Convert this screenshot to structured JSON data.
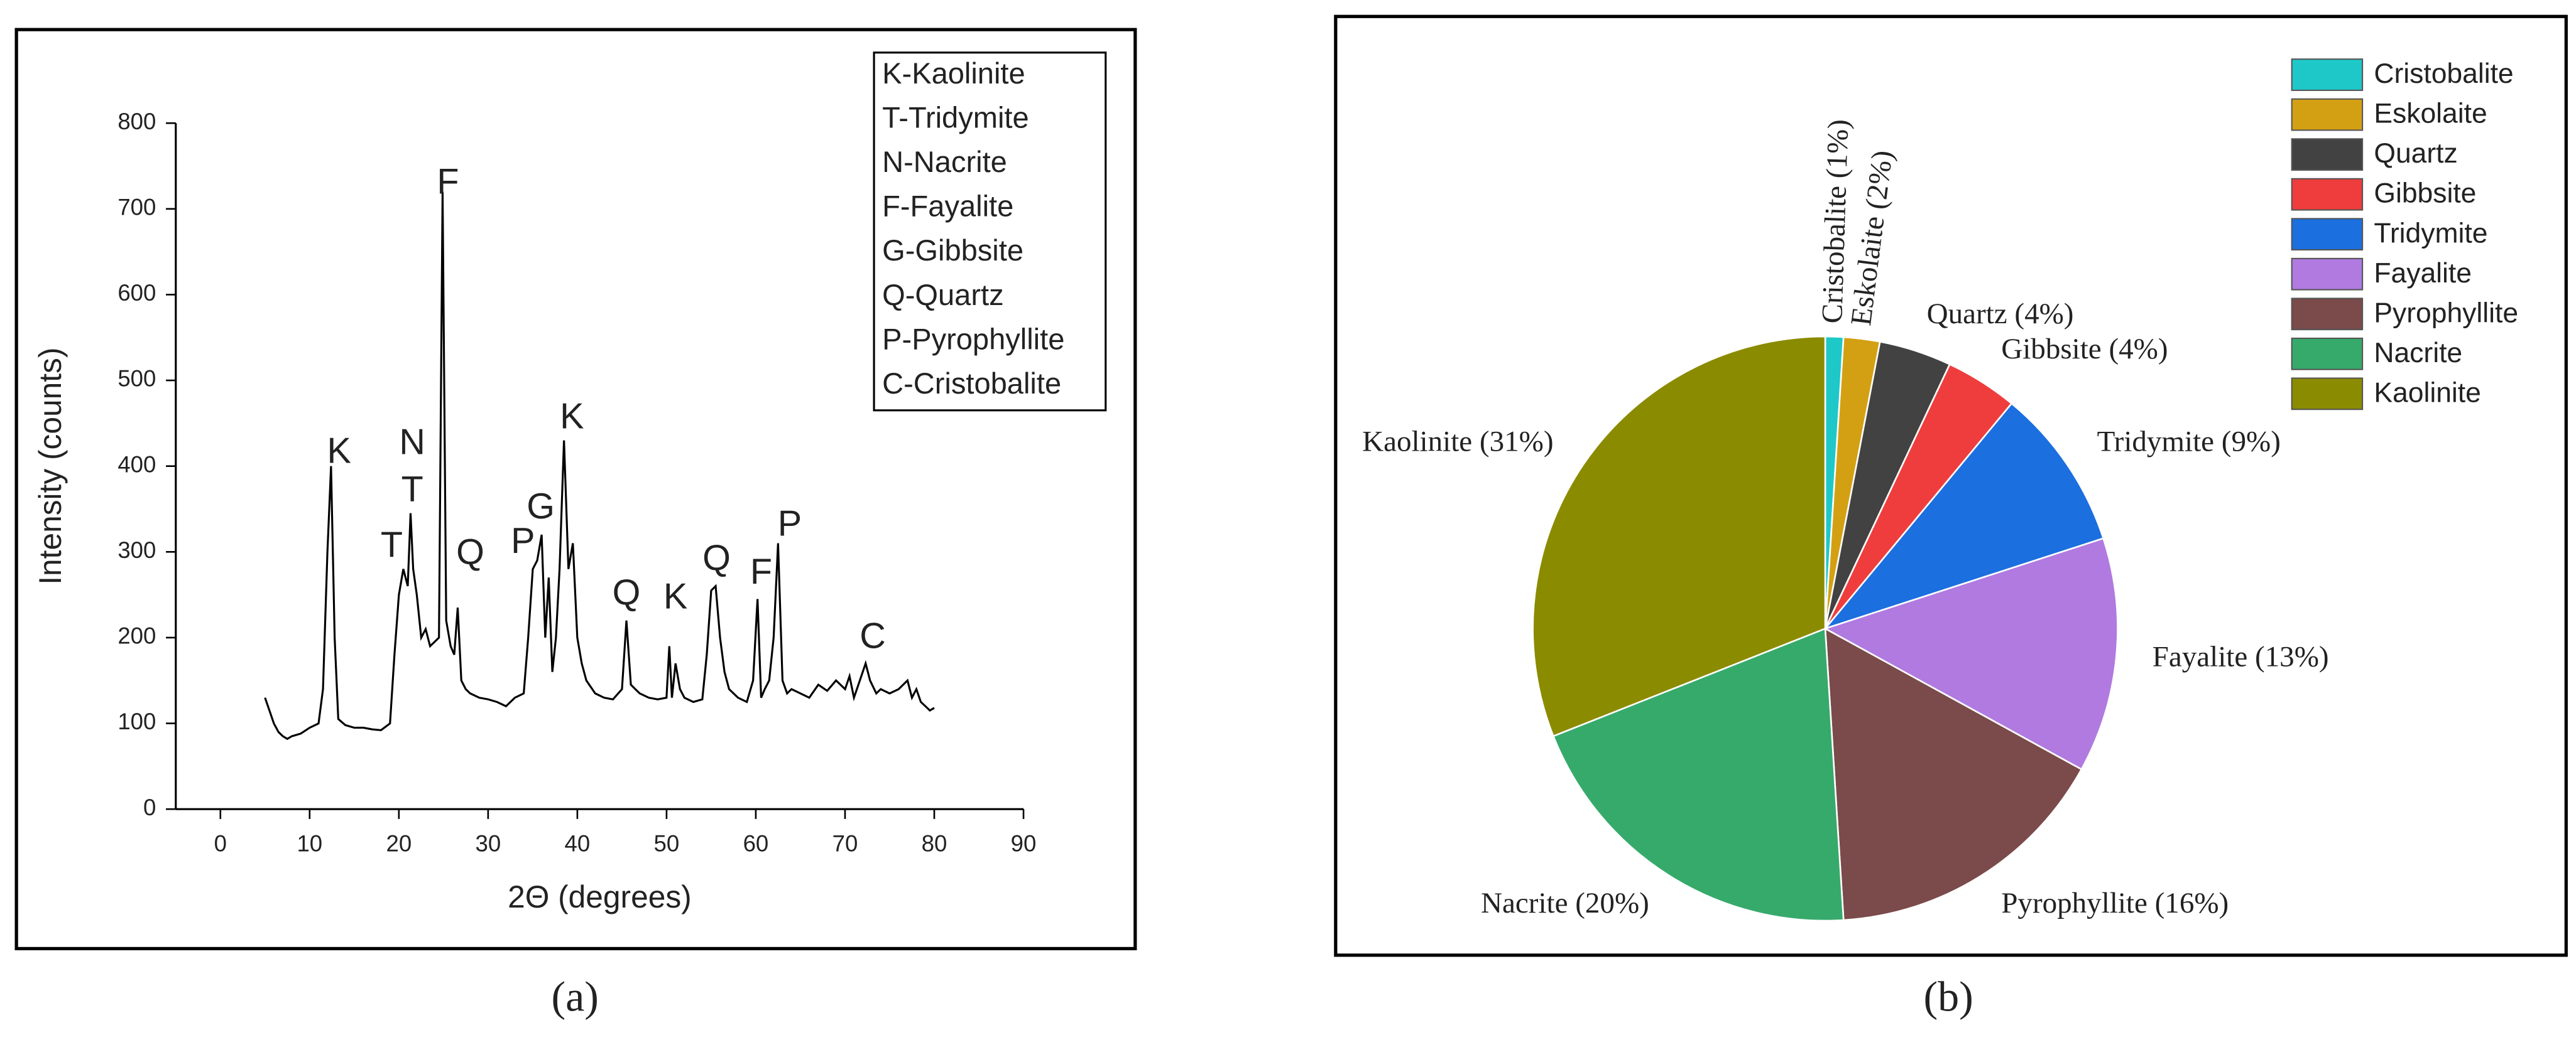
{
  "chart_data": [
    {
      "type": "line",
      "caption": "(a)",
      "x_label": "2Θ (degrees)",
      "y_label": "Intensity (counts)",
      "xlim": [
        -5,
        90
      ],
      "xticks": [
        0,
        10,
        20,
        30,
        40,
        50,
        60,
        70,
        80,
        90
      ],
      "ylim": [
        0,
        800
      ],
      "yticks": [
        0,
        100,
        200,
        300,
        400,
        500,
        600,
        700,
        800
      ],
      "color": "#000000",
      "x": [
        5,
        5.5,
        6,
        6.5,
        7,
        7.5,
        8,
        9,
        10,
        11,
        11.5,
        12,
        12.4,
        12.8,
        13.2,
        14,
        15,
        16,
        17,
        18,
        19,
        19.5,
        20,
        20.5,
        21,
        21.3,
        21.6,
        22,
        22.5,
        23,
        23.5,
        24,
        24.5,
        24.9,
        25.3,
        25.8,
        26.2,
        26.6,
        27,
        27.5,
        28,
        29,
        30,
        31,
        32,
        33,
        34,
        34.5,
        35,
        35.5,
        36,
        36.4,
        36.8,
        37.2,
        37.6,
        38,
        38.5,
        39,
        39.5,
        40,
        40.5,
        41,
        42,
        43,
        44,
        45,
        45.5,
        46,
        46.5,
        47,
        48,
        49,
        50,
        50.3,
        50.6,
        51,
        51.5,
        52,
        53,
        54,
        54.5,
        55,
        55.5,
        56,
        56.5,
        57,
        58,
        59,
        59.7,
        60.2,
        60.6,
        61,
        61.5,
        62,
        62.5,
        63,
        63.5,
        64,
        65,
        66,
        67,
        68,
        69,
        70,
        70.5,
        71,
        71.5,
        72.3,
        72.8,
        73.5,
        74,
        75,
        76,
        77,
        77.5,
        78,
        78.5,
        79,
        79.5,
        80
      ],
      "values": [
        130,
        115,
        100,
        90,
        85,
        82,
        85,
        88,
        95,
        100,
        140,
        300,
        400,
        200,
        105,
        98,
        95,
        95,
        93,
        92,
        100,
        180,
        250,
        280,
        260,
        345,
        280,
        250,
        200,
        210,
        190,
        195,
        200,
        720,
        220,
        190,
        180,
        235,
        150,
        140,
        135,
        130,
        128,
        125,
        120,
        130,
        135,
        200,
        280,
        290,
        320,
        200,
        270,
        160,
        200,
        280,
        430,
        280,
        310,
        200,
        170,
        150,
        135,
        130,
        128,
        140,
        220,
        145,
        140,
        135,
        130,
        128,
        130,
        190,
        130,
        170,
        140,
        130,
        125,
        128,
        180,
        255,
        260,
        200,
        160,
        140,
        130,
        125,
        150,
        245,
        130,
        140,
        150,
        200,
        310,
        150,
        135,
        140,
        135,
        130,
        145,
        138,
        150,
        140,
        155,
        130,
        145,
        170,
        150,
        135,
        140,
        135,
        140,
        150,
        130,
        140,
        125,
        120,
        115,
        118
      ],
      "legend_text": [
        "K-Kaolinite",
        "T-Tridymite",
        "N-Nacrite",
        "F-Fayalite",
        "G-Gibbsite",
        "Q-Quartz",
        "P-Pyrophyllite",
        "C-Cristobalite"
      ],
      "annotations": [
        {
          "text": "K",
          "x": 13.3,
          "y": 415
        },
        {
          "text": "T",
          "x": 19.2,
          "y": 305
        },
        {
          "text": "N",
          "x": 21.5,
          "y": 425
        },
        {
          "text": "T",
          "x": 21.5,
          "y": 370
        },
        {
          "text": "F",
          "x": 25.5,
          "y": 729
        },
        {
          "text": "Q",
          "x": 28,
          "y": 297
        },
        {
          "text": "P",
          "x": 33.9,
          "y": 310
        },
        {
          "text": "G",
          "x": 35.9,
          "y": 350
        },
        {
          "text": "K",
          "x": 39.4,
          "y": 455
        },
        {
          "text": "Q",
          "x": 45.5,
          "y": 250
        },
        {
          "text": "K",
          "x": 51,
          "y": 245
        },
        {
          "text": "Q",
          "x": 55.6,
          "y": 290
        },
        {
          "text": "F",
          "x": 60.6,
          "y": 274
        },
        {
          "text": "P",
          "x": 63.8,
          "y": 330
        },
        {
          "text": "C",
          "x": 73.1,
          "y": 199
        }
      ]
    },
    {
      "type": "pie",
      "caption": "(b)",
      "categories": [
        "Cristobalite",
        "Eskolaite",
        "Quartz",
        "Gibbsite",
        "Tridymite",
        "Fayalite",
        "Pyrophyllite",
        "Nacrite",
        "Kaolinite"
      ],
      "values": [
        1,
        2,
        4,
        4,
        9,
        13,
        16,
        20,
        31
      ],
      "value_labels": [
        "Cristobalite (1%)",
        "Eskolaite (2%)",
        "Quartz (4%)",
        "Gibbsite (4%)",
        "Tridymite (9%)",
        "Fayalite (13%)",
        "Pyrophyllite (16%)",
        "Nacrite (20%)",
        "Kaolinite (31%)"
      ],
      "colors": [
        "#1ec8c8",
        "#d4a013",
        "#424242",
        "#ef3d3d",
        "#1b6fdf",
        "#b07ae0",
        "#7b4a4a",
        "#36aa6b",
        "#8b8b00"
      ]
    }
  ]
}
